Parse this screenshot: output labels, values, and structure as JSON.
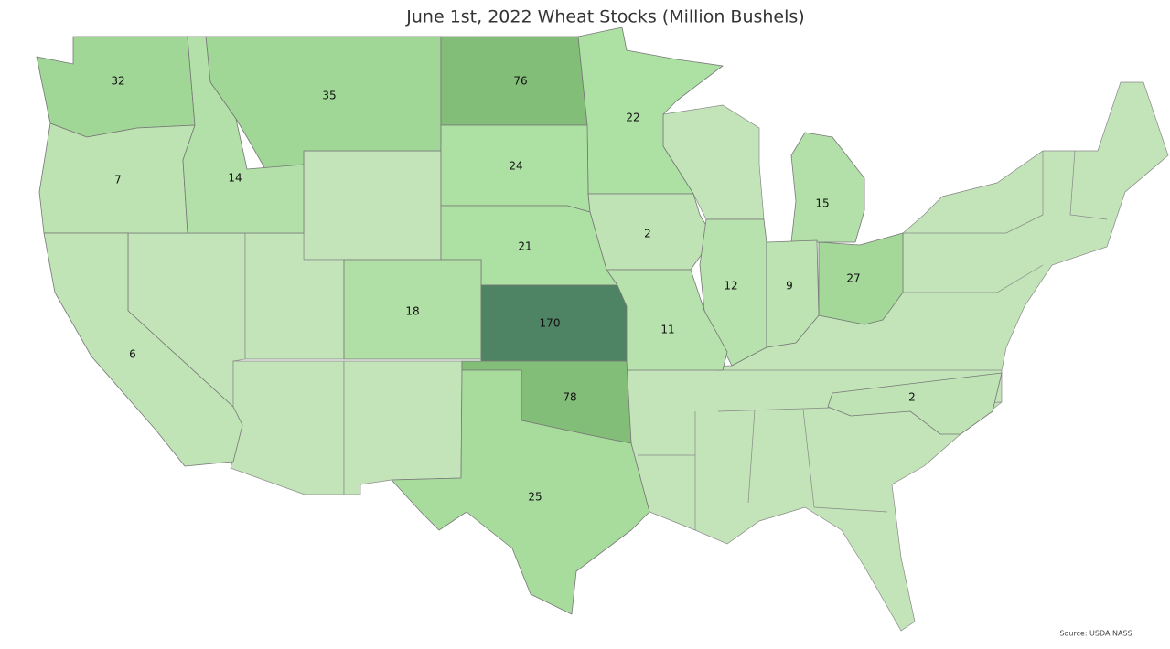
{
  "title": "June 1st, 2022 Wheat Stocks (Million Bushels)",
  "source": "Source: USDA NASS",
  "states": [
    {
      "value": 32,
      "color": "#a0d696"
    },
    {
      "value": 35,
      "color": "#a0d696"
    },
    {
      "value": 76,
      "color": "#83be79"
    },
    {
      "value": 22,
      "color": "#ade0a3"
    },
    {
      "value": 7,
      "color": "#bde3b2"
    },
    {
      "value": 14,
      "color": "#b3e0a8"
    },
    {
      "value": 24,
      "color": "#ade0a3"
    },
    {
      "value": 15,
      "color": "#b3e0a8"
    },
    {
      "value": 2,
      "color": "#bfe3b5"
    },
    {
      "value": 21,
      "color": "#ade0a3"
    },
    {
      "value": 27,
      "color": "#a3d899"
    },
    {
      "value": 18,
      "color": "#b0e0a5"
    },
    {
      "value": 12,
      "color": "#b8e2ad"
    },
    {
      "value": 9,
      "color": "#bde3b2"
    },
    {
      "value": 170,
      "color": "#4e8463"
    },
    {
      "value": 11,
      "color": "#b8e2ad"
    },
    {
      "value": 6,
      "color": "#c0e4b6"
    },
    {
      "value": 78,
      "color": "#83be79"
    },
    {
      "value": 2,
      "color": "#bfe3b5"
    },
    {
      "value": 25,
      "color": "#a8dc9d"
    }
  ]
}
